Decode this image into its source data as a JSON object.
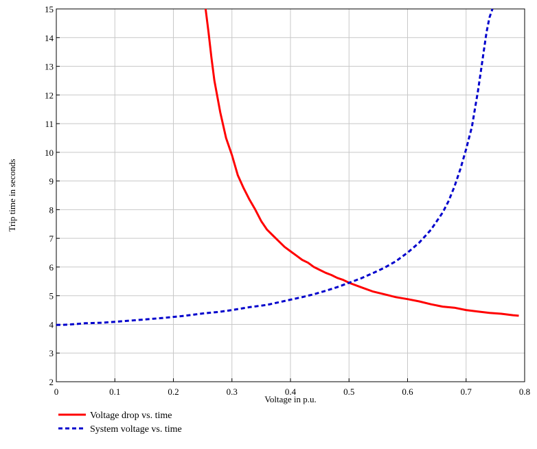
{
  "chart_data": {
    "type": "line",
    "xlabel": "Voltage in p.u.",
    "ylabel": "Trip time in seconds",
    "xlim": [
      0,
      0.8
    ],
    "ylim": [
      2,
      15
    ],
    "xticks": [
      "0",
      "0.1",
      "0.2",
      "0.3",
      "0.4",
      "0.5",
      "0.6",
      "0.7",
      "0.8"
    ],
    "yticks": [
      "2",
      "3",
      "4",
      "5",
      "6",
      "7",
      "8",
      "9",
      "10",
      "11",
      "12",
      "13",
      "14",
      "15"
    ],
    "grid": true,
    "legend_position": "bottom-left",
    "series": [
      {
        "name": "Voltage drop vs. time",
        "color": "#ff0000",
        "style": "solid",
        "x": [
          0.255,
          0.26,
          0.265,
          0.27,
          0.28,
          0.29,
          0.3,
          0.31,
          0.32,
          0.33,
          0.34,
          0.35,
          0.36,
          0.37,
          0.38,
          0.39,
          0.4,
          0.41,
          0.42,
          0.43,
          0.44,
          0.45,
          0.46,
          0.47,
          0.48,
          0.49,
          0.5,
          0.52,
          0.54,
          0.56,
          0.58,
          0.6,
          0.62,
          0.64,
          0.66,
          0.68,
          0.7,
          0.72,
          0.74,
          0.76,
          0.78,
          0.79
        ],
        "y": [
          15.0,
          14.2,
          13.3,
          12.5,
          11.4,
          10.5,
          9.9,
          9.2,
          8.75,
          8.35,
          8.0,
          7.6,
          7.3,
          7.1,
          6.9,
          6.7,
          6.55,
          6.4,
          6.25,
          6.15,
          6.0,
          5.9,
          5.8,
          5.72,
          5.62,
          5.55,
          5.45,
          5.3,
          5.15,
          5.05,
          4.95,
          4.88,
          4.8,
          4.7,
          4.62,
          4.58,
          4.5,
          4.45,
          4.4,
          4.37,
          4.32,
          4.3
        ]
      },
      {
        "name": "System voltage vs. time",
        "color": "#0000cc",
        "style": "dashed",
        "x": [
          0,
          0.02,
          0.05,
          0.08,
          0.1,
          0.12,
          0.15,
          0.18,
          0.2,
          0.22,
          0.25,
          0.28,
          0.3,
          0.33,
          0.36,
          0.38,
          0.4,
          0.42,
          0.44,
          0.46,
          0.48,
          0.5,
          0.52,
          0.54,
          0.56,
          0.58,
          0.6,
          0.62,
          0.64,
          0.66,
          0.67,
          0.68,
          0.69,
          0.7,
          0.71,
          0.715,
          0.72,
          0.725,
          0.73,
          0.735,
          0.74,
          0.745
        ],
        "y": [
          3.98,
          3.99,
          4.04,
          4.06,
          4.09,
          4.12,
          4.17,
          4.22,
          4.26,
          4.3,
          4.38,
          4.44,
          4.5,
          4.6,
          4.68,
          4.77,
          4.86,
          4.95,
          5.05,
          5.17,
          5.3,
          5.45,
          5.6,
          5.78,
          5.97,
          6.2,
          6.5,
          6.85,
          7.3,
          7.9,
          8.3,
          8.8,
          9.4,
          10.1,
          10.9,
          11.5,
          12.1,
          12.8,
          13.5,
          14.2,
          14.7,
          15.0
        ]
      }
    ]
  }
}
